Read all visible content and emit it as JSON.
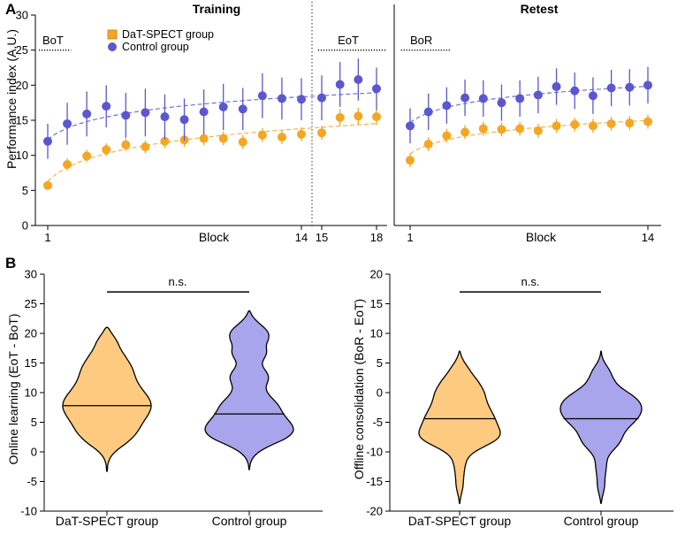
{
  "figure": {
    "panel_a_label": "A",
    "panel_b_label": "B"
  },
  "chart_data": [
    {
      "id": "training",
      "type": "scatter",
      "title": "Training",
      "xlabel": "Block",
      "ylabel": "Performance index (A.U.)",
      "ylim": [
        0,
        30
      ],
      "yticks": [
        0,
        5,
        10,
        15,
        20,
        25,
        30
      ],
      "xticks": [
        {
          "x": 1,
          "label": "1"
        },
        {
          "x": 14,
          "label": "14"
        },
        {
          "x": 15,
          "label": "15"
        },
        {
          "x": 18,
          "label": "18"
        }
      ],
      "series": [
        {
          "name": "DaT-SPECT group",
          "color": "#f5a623",
          "x": [
            1,
            2,
            3,
            4,
            5,
            6,
            7,
            8,
            9,
            10,
            11,
            12,
            13,
            14,
            15,
            16,
            17,
            18
          ],
          "values": [
            5.7,
            8.7,
            9.9,
            10.8,
            11.5,
            11.2,
            12.0,
            12.2,
            12.4,
            12.4,
            11.9,
            12.9,
            12.6,
            13.0,
            13.2,
            15.4,
            15.6,
            15.5
          ],
          "errors": [
            0.6,
            0.9,
            0.9,
            0.9,
            0.9,
            0.9,
            1.0,
            1.0,
            1.0,
            1.0,
            1.0,
            1.0,
            1.0,
            1.0,
            1.0,
            1.2,
            1.2,
            1.2
          ]
        },
        {
          "name": "Control group",
          "color": "#5b57d1",
          "x": [
            1,
            2,
            3,
            4,
            5,
            6,
            7,
            8,
            9,
            10,
            11,
            12,
            13,
            14,
            15,
            16,
            17,
            18
          ],
          "values": [
            12.0,
            14.5,
            15.9,
            17.0,
            15.7,
            16.1,
            15.5,
            15.1,
            16.2,
            16.9,
            16.6,
            18.5,
            18.1,
            18.0,
            18.2,
            20.1,
            20.8,
            19.5
          ],
          "errors": [
            2.5,
            3.0,
            3.2,
            3.0,
            3.2,
            3.4,
            3.2,
            3.0,
            3.2,
            3.3,
            3.0,
            3.2,
            3.0,
            3.0,
            3.2,
            3.2,
            3.0,
            3.0
          ]
        }
      ],
      "annotations": [
        {
          "text": "BoT",
          "x_from": 0.5,
          "x_to": 2.2,
          "y": 25
        },
        {
          "text": "EoT",
          "x_from": 14.8,
          "x_to": 18.5,
          "y": 25
        }
      ],
      "divider_between_blocks": [
        14,
        15
      ],
      "legend": {
        "placement": "top-left",
        "items": [
          "DaT-SPECT group",
          "Control group"
        ]
      }
    },
    {
      "id": "retest",
      "type": "scatter",
      "title": "Retest",
      "xlabel": "Block",
      "ylim": [
        0,
        30
      ],
      "xticks": [
        {
          "x": 1,
          "label": "1"
        },
        {
          "x": 14,
          "label": "14"
        }
      ],
      "series": [
        {
          "name": "DaT-SPECT group",
          "color": "#f5a623",
          "x": [
            1,
            2,
            3,
            4,
            5,
            6,
            7,
            8,
            9,
            10,
            11,
            12,
            13,
            14
          ],
          "values": [
            9.3,
            11.6,
            12.8,
            13.3,
            13.8,
            13.7,
            13.8,
            13.5,
            14.2,
            14.4,
            14.2,
            14.5,
            14.6,
            14.8
          ],
          "errors": [
            1.0,
            1.0,
            1.0,
            1.0,
            1.0,
            1.0,
            1.0,
            1.0,
            1.0,
            1.0,
            1.0,
            1.0,
            1.0,
            1.0
          ]
        },
        {
          "name": "Control group",
          "color": "#5b57d1",
          "x": [
            1,
            2,
            3,
            4,
            5,
            6,
            7,
            8,
            9,
            10,
            11,
            12,
            13,
            14
          ],
          "values": [
            14.2,
            16.2,
            17.1,
            18.2,
            18.1,
            17.5,
            18.1,
            18.6,
            19.8,
            19.2,
            18.5,
            19.6,
            19.7,
            20.0
          ],
          "errors": [
            2.5,
            2.6,
            2.6,
            2.6,
            2.6,
            2.6,
            2.6,
            2.6,
            2.6,
            2.6,
            2.6,
            2.6,
            2.6,
            2.6
          ]
        }
      ],
      "annotations": [
        {
          "text": "BoR",
          "x_from": 0.5,
          "x_to": 3.2,
          "y": 25
        }
      ]
    },
    {
      "id": "online",
      "type": "violin",
      "ylabel": "Online learning (EoT - BoT)",
      "ylim": [
        -10,
        30
      ],
      "yticks": [
        -10,
        -5,
        0,
        5,
        10,
        15,
        20,
        25,
        30
      ],
      "categories": [
        "DaT-SPECT group",
        "Control group"
      ],
      "colors": [
        "#fdca7f",
        "#a9a5ec"
      ],
      "medians": [
        7.8,
        6.4
      ],
      "ranges": [
        [
          -3.3,
          21.0
        ],
        [
          -3.0,
          23.8
        ]
      ],
      "significance": {
        "text": "n.s.",
        "y": 27
      }
    },
    {
      "id": "offline",
      "type": "violin",
      "ylabel": "Offline consolidation (BoR - EoT)",
      "ylim": [
        -20,
        20
      ],
      "yticks": [
        -20,
        -15,
        -10,
        -5,
        0,
        5,
        10,
        15,
        20
      ],
      "categories": [
        "DaT-SPECT group",
        "Control group"
      ],
      "colors": [
        "#fdca7f",
        "#a9a5ec"
      ],
      "medians": [
        -4.4,
        -4.4
      ],
      "ranges": [
        [
          -18.7,
          7.0
        ],
        [
          -18.7,
          7.0
        ]
      ],
      "significance": {
        "text": "n.s.",
        "y": 17
      }
    }
  ]
}
